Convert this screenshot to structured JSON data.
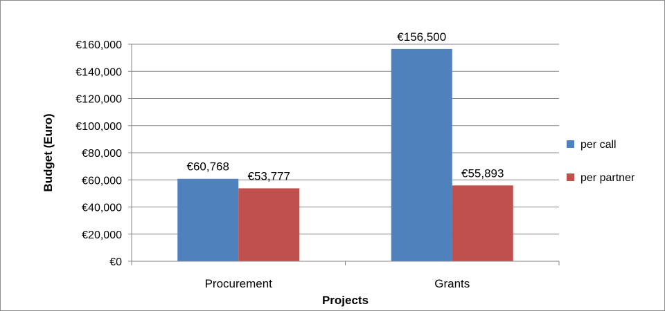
{
  "chart_data": {
    "type": "bar",
    "categories": [
      "Procurement",
      "Grants"
    ],
    "series": [
      {
        "name": "per call",
        "color": "#4f81bd",
        "values": [
          60768,
          156500
        ],
        "labels": [
          "€60,768",
          "€156,500"
        ]
      },
      {
        "name": "per partner",
        "color": "#c0504d",
        "values": [
          53777,
          55893
        ],
        "labels": [
          "€53,777",
          "€55,893"
        ]
      }
    ],
    "title": "",
    "xlabel": "Projects",
    "ylabel": "Budget (Euro)",
    "ylim": [
      0,
      160000
    ],
    "yticks": [
      0,
      20000,
      40000,
      60000,
      80000,
      100000,
      120000,
      140000,
      160000
    ],
    "ytick_labels": [
      "€0",
      "€20,000",
      "€40,000",
      "€60,000",
      "€80,000",
      "€100,000",
      "€120,000",
      "€140,000",
      "€160,000"
    ],
    "grid": true,
    "legend_position": "right"
  }
}
